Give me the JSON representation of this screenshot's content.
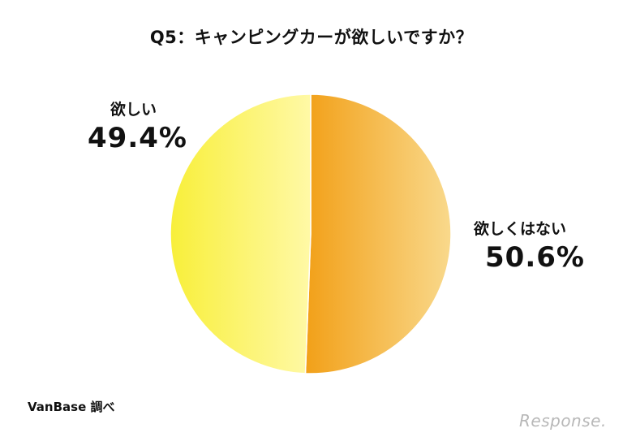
{
  "title": "Q5：キャンピングカーが欲しいですか？",
  "source": "VanBase 調べ",
  "watermark": "Response.",
  "chart_data": {
    "type": "pie",
    "title": "Q5：キャンピングカーが欲しいですか？",
    "slices": [
      {
        "label": "欲しくはない",
        "value": 50.6,
        "display": "50.6%",
        "color_start": "#f2a018",
        "color_end": "#f9d98c"
      },
      {
        "label": "欲しい",
        "value": 49.4,
        "display": "49.4%",
        "color_start": "#fff9a6",
        "color_end": "#f8ef3a"
      }
    ],
    "start": "12 o'clock",
    "direction": "clockwise"
  }
}
